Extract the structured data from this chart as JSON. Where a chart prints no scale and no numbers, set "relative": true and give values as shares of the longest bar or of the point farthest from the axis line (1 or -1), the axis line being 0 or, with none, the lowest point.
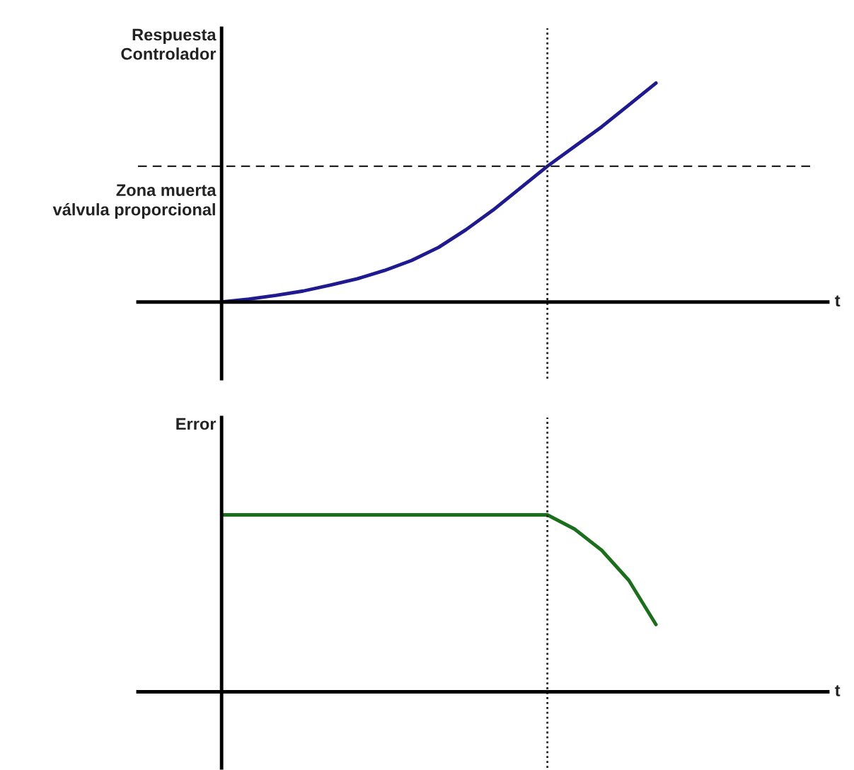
{
  "chart_data": [
    {
      "type": "line",
      "ylabel": "Respuesta\nControlador",
      "xlabel": "t",
      "relative": true,
      "legend": false,
      "marker": "none",
      "line_style": "solid",
      "categories": [
        null,
        null,
        null,
        null,
        null,
        null,
        null,
        null,
        null,
        null,
        null,
        null,
        null,
        null,
        null,
        null,
        null,
        null,
        null,
        null,
        null,
        null,
        null
      ],
      "series": [
        {
          "color": "#1f1a8f",
          "values": [
            0,
            0.013,
            0.03,
            0.05,
            0.077,
            0.106,
            0.144,
            0.19,
            0.25,
            0.33,
            0.42,
            0.52,
            0.62,
            0.71,
            0.8,
            0.9,
            1,
            null,
            null,
            null,
            null,
            null,
            null
          ]
        }
      ],
      "ref_lines": [
        {
          "axis": "y",
          "value": 0.62,
          "label": "Zona muerta\nválvula proporcional",
          "line_style": "dashed",
          "color": "#222222"
        }
      ]
    },
    {
      "type": "line",
      "ylabel": "Error",
      "xlabel": "t",
      "relative": true,
      "legend": false,
      "marker": "none",
      "line_style": "solid",
      "categories": [
        null,
        null,
        null,
        null,
        null,
        null,
        null,
        null,
        null,
        null,
        null,
        null,
        null,
        null,
        null,
        null,
        null,
        null,
        null,
        null,
        null,
        null,
        null
      ],
      "series": [
        {
          "color": "#1b6e1b",
          "values": [
            1,
            1,
            1,
            1,
            1,
            1,
            1,
            1,
            1,
            1,
            1,
            1,
            1,
            0.92,
            0.8,
            0.63,
            0.38,
            null,
            null,
            null,
            null,
            null,
            null
          ]
        }
      ]
    }
  ]
}
